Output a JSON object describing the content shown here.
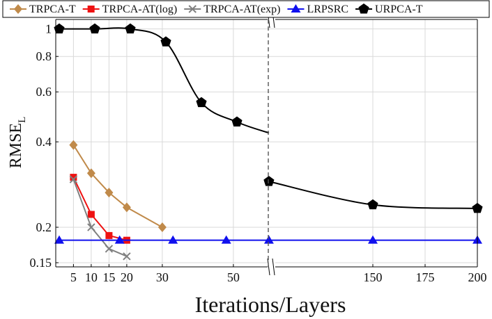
{
  "chart_data": {
    "type": "line",
    "xlabel": "Iterations/Layers",
    "ylabel": "RMSE",
    "ylabel_sub": "L",
    "y_scale": "log",
    "ylim": [
      0.145,
      1.08
    ],
    "grid": true,
    "legend_position": "top",
    "x_axis_break": "between 50 and 150",
    "x_ticks": [
      5,
      10,
      15,
      20,
      30,
      50,
      150,
      175,
      200
    ],
    "y_ticks": [
      {
        "value": 1,
        "label": "1"
      },
      {
        "value": 0.8,
        "label": "0.8"
      },
      {
        "value": 0.6,
        "label": "0.6"
      },
      {
        "value": 0.4,
        "label": "0.4"
      },
      {
        "value": 0.2,
        "label": "0.2"
      },
      {
        "value": 0.15,
        "label": "0.15"
      }
    ],
    "series": [
      {
        "name": "TRPCA-T",
        "color": "#c08a4a",
        "marker": "diamond",
        "smooth": false,
        "points": [
          [
            5,
            0.39
          ],
          [
            10,
            0.31
          ],
          [
            15,
            0.265
          ],
          [
            20,
            0.235
          ],
          [
            30,
            0.2
          ]
        ]
      },
      {
        "name": "TRPCA-AT(log)",
        "color": "#ee1111",
        "marker": "square",
        "smooth": false,
        "points": [
          [
            5,
            0.3
          ],
          [
            10,
            0.222
          ],
          [
            15,
            0.187
          ],
          [
            20,
            0.18
          ]
        ]
      },
      {
        "name": "TRPCA-AT(exp)",
        "color": "#808080",
        "marker": "cross",
        "smooth": false,
        "points": [
          [
            5,
            0.295
          ],
          [
            10,
            0.2
          ],
          [
            15,
            0.168
          ],
          [
            20,
            0.158
          ]
        ]
      },
      {
        "name": "LRPSRC",
        "color": "#1010ee",
        "marker": "triangle",
        "smooth": false,
        "points": [
          [
            1,
            0.18
          ],
          [
            18,
            0.18
          ],
          [
            33,
            0.18
          ],
          [
            48,
            0.18
          ],
          [
            60,
            0.18
          ],
          [
            150,
            0.18
          ],
          [
            200,
            0.18
          ]
        ]
      },
      {
        "name": "URPCA-T",
        "color": "#000000",
        "marker": "pentagon",
        "smooth": true,
        "segments": [
          [
            [
              1,
              1.0
            ],
            [
              11,
              1.0
            ],
            [
              21,
              1.0
            ],
            [
              31,
              0.9
            ],
            [
              41,
              0.55
            ],
            [
              51,
              0.47
            ],
            [
              60,
              0.43
            ]
          ],
          [
            [
              60,
              0.29
            ],
            [
              150,
              0.24
            ],
            [
              200,
              0.233
            ]
          ]
        ]
      }
    ]
  }
}
